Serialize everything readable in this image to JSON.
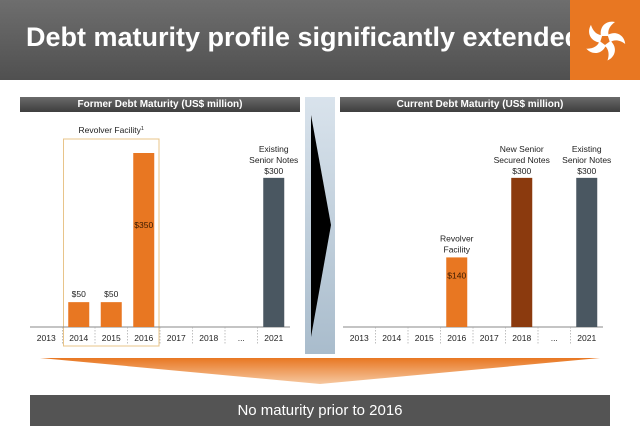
{
  "slide": {
    "title": "Debt maturity profile significantly extended",
    "left_header": "Former Debt Maturity (US$ million)",
    "right_header": "Current Debt Maturity (US$ million)",
    "conclusion": "No maturity prior to 2016"
  },
  "colors": {
    "orange": "#e87722",
    "dark_orange": "#8b3a0e",
    "slate": "#4a5761",
    "header_gray": "#5c5c5c",
    "box_border": "#e8c48a"
  },
  "icons": [
    "logo-icon",
    "arrow-right-icon",
    "arrow-down-icon"
  ],
  "chart_data": [
    {
      "type": "bar",
      "title": "Former Debt Maturity (US$ million)",
      "categories": [
        "2013",
        "2014",
        "2015",
        "2016",
        "2017",
        "2018",
        "...",
        "2021"
      ],
      "values": [
        0,
        50,
        50,
        350,
        0,
        0,
        0,
        300
      ],
      "value_labels": [
        "",
        "$50",
        "$50",
        "$350",
        "",
        "",
        "",
        "$300"
      ],
      "bar_colors": [
        "",
        "orange",
        "orange",
        "orange",
        "",
        "",
        "",
        "slate"
      ],
      "annotations": [
        {
          "category": "2021",
          "lines": [
            "Existing",
            "Senior Notes"
          ]
        }
      ],
      "highlight_box": {
        "label": "Revolver Facility",
        "footnote": "1",
        "categories": [
          "2014",
          "2015",
          "2016"
        ]
      },
      "ylim": [
        0,
        350
      ]
    },
    {
      "type": "bar",
      "title": "Current Debt Maturity (US$ million)",
      "categories": [
        "2013",
        "2014",
        "2015",
        "2016",
        "2017",
        "2018",
        "...",
        "2021"
      ],
      "values": [
        0,
        0,
        0,
        140,
        0,
        300,
        0,
        300
      ],
      "value_labels": [
        "",
        "",
        "",
        "$140",
        "",
        "$300",
        "",
        "$300"
      ],
      "bar_colors": [
        "",
        "",
        "",
        "orange",
        "",
        "dark_orange",
        "",
        "slate"
      ],
      "annotations": [
        {
          "category": "2016",
          "lines": [
            "Revolver",
            "Facility"
          ]
        },
        {
          "category": "2018",
          "lines": [
            "New Senior",
            "Secured Notes"
          ]
        },
        {
          "category": "2021",
          "lines": [
            "Existing",
            "Senior Notes"
          ]
        }
      ],
      "ylim": [
        0,
        350
      ]
    }
  ]
}
